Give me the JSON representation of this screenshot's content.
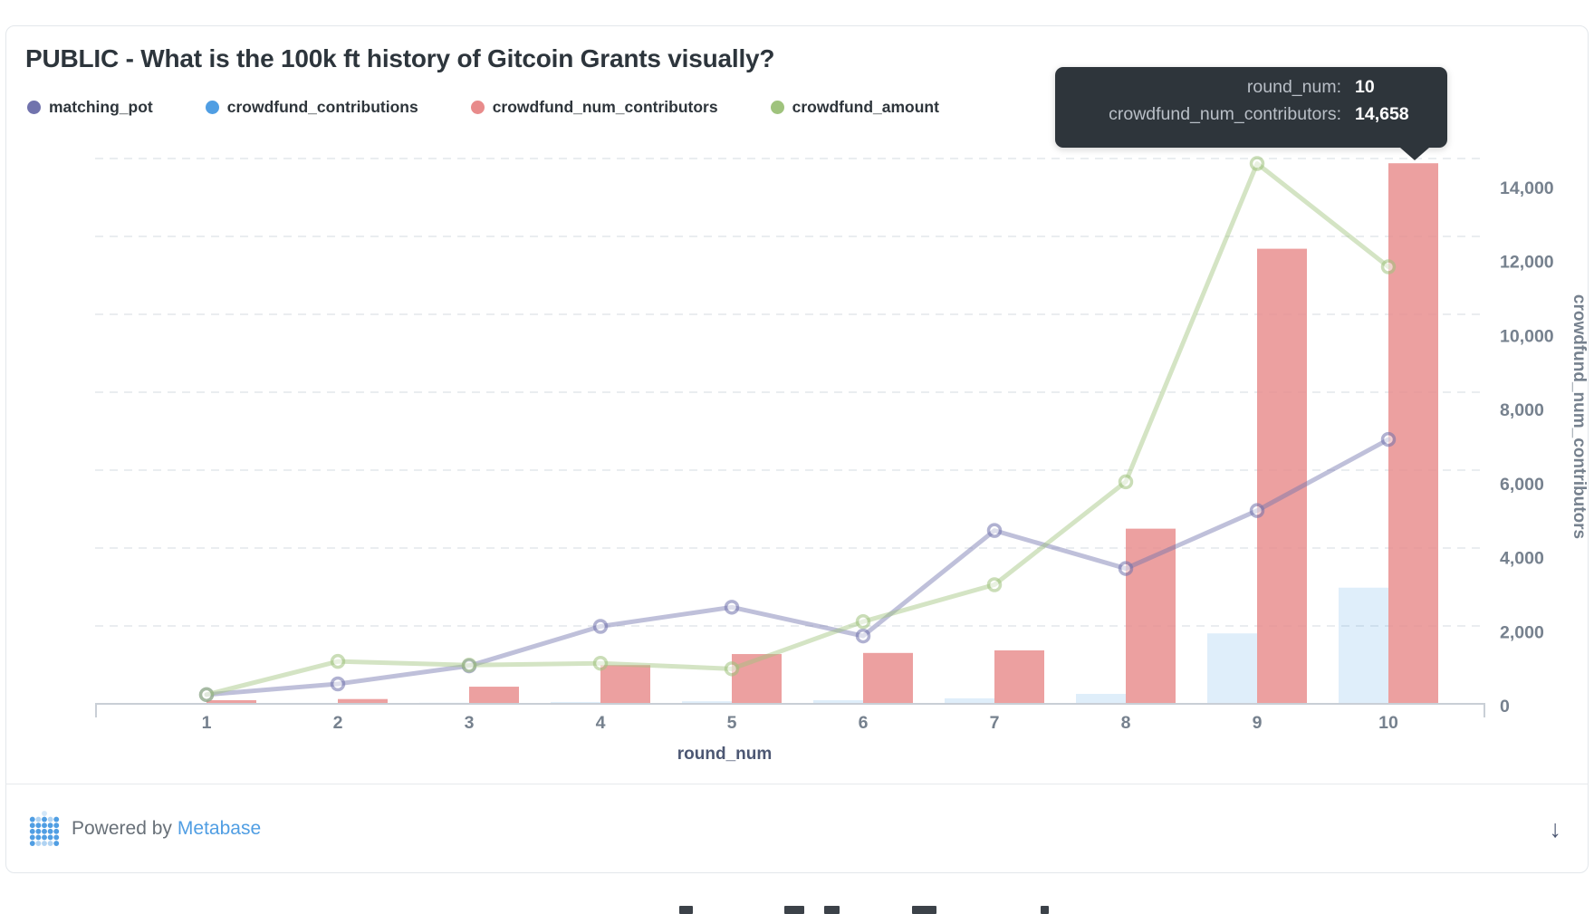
{
  "header": {
    "title": "PUBLIC - What is the 100k ft history of Gitcoin Grants visually?"
  },
  "tooltip": {
    "rows": [
      {
        "label": "round_num:",
        "value": "10"
      },
      {
        "label": "crowdfund_num_contributors:",
        "value": "14,658"
      }
    ]
  },
  "chart_data": {
    "type": "combo",
    "x": [
      1,
      2,
      3,
      4,
      5,
      6,
      7,
      8,
      9,
      10
    ],
    "xlabel": "round_num",
    "ylabel_right": "crowdfund_num_contributors",
    "y_ticks": [
      "0",
      "2,000",
      "4,000",
      "6,000",
      "8,000",
      "10,000",
      "12,000",
      "14,000"
    ],
    "ylim": [
      0,
      14658
    ],
    "grid": true,
    "legend_position": "top-left",
    "series": [
      {
        "name": "matching_pot",
        "type": "line",
        "color": "#7173AD",
        "values": [
          250,
          540,
          1030,
          2100,
          2620,
          1840,
          4700,
          3670,
          5240,
          7170
        ]
      },
      {
        "name": "crowdfund_contributions",
        "type": "bar",
        "color": "#509EE3",
        "values": [
          15,
          25,
          30,
          50,
          70,
          100,
          150,
          270,
          1910,
          3150
        ]
      },
      {
        "name": "crowdfund_num_contributors",
        "type": "bar",
        "color": "#E88B8B",
        "values": [
          100,
          130,
          465,
          1050,
          1350,
          1380,
          1450,
          4750,
          12340,
          14658
        ]
      },
      {
        "name": "crowdfund_amount",
        "type": "line",
        "color": "#9FC37D",
        "values": [
          250,
          1150,
          1050,
          1100,
          950,
          2230,
          3230,
          6020,
          14650,
          11850
        ]
      }
    ]
  },
  "footer": {
    "powered_by": "Powered by",
    "brand": "Metabase",
    "brand_color": "#509EE3",
    "download_icon": "↓"
  }
}
